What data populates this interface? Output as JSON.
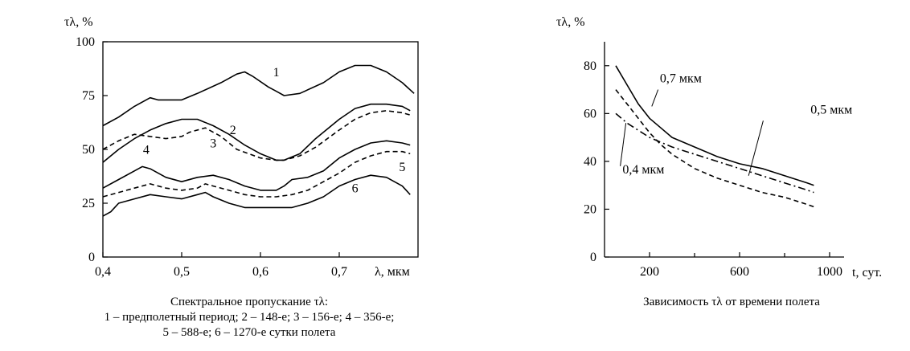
{
  "chart_data": [
    {
      "type": "line",
      "ylabel": "τλ, %",
      "xlabel": "λ, мкм",
      "xlim": [
        0.4,
        0.8
      ],
      "ylim": [
        0,
        100
      ],
      "x_ticks": [
        "0,4",
        "0,5",
        "0,6",
        "0,7"
      ],
      "x_tick_values": [
        0.4,
        0.5,
        0.6,
        0.7
      ],
      "y_ticks": [
        "0",
        "25",
        "50",
        "75",
        "100"
      ],
      "y_tick_values": [
        0,
        25,
        50,
        75,
        100
      ],
      "grid": false,
      "caption_lines": [
        "Спектральное пропускание τλ:",
        "1 – предполетный период; 2 – 148-е; 3 – 156-е; 4 – 356-е;",
        "5 – 588-е; 6 – 1270-е сутки полета"
      ],
      "series": [
        {
          "label": "1",
          "style": "solid",
          "x": [
            0.4,
            0.42,
            0.44,
            0.46,
            0.47,
            0.5,
            0.52,
            0.55,
            0.57,
            0.58,
            0.59,
            0.61,
            0.62,
            0.63,
            0.65,
            0.68,
            0.7,
            0.72,
            0.74,
            0.76,
            0.78,
            0.795
          ],
          "y": [
            61,
            65,
            70,
            74,
            73,
            73,
            76,
            81,
            85,
            86,
            84,
            79,
            77,
            75,
            76,
            81,
            86,
            89,
            89,
            86,
            81,
            76
          ]
        },
        {
          "label": "2",
          "style": "solid",
          "x": [
            0.4,
            0.42,
            0.44,
            0.46,
            0.48,
            0.5,
            0.52,
            0.54,
            0.56,
            0.58,
            0.6,
            0.62,
            0.63,
            0.65,
            0.67,
            0.7,
            0.72,
            0.74,
            0.76,
            0.78,
            0.79
          ],
          "y": [
            44,
            50,
            55,
            59,
            62,
            64,
            64,
            61,
            57,
            52,
            48,
            45,
            45,
            48,
            55,
            64,
            69,
            71,
            71,
            70,
            68
          ]
        },
        {
          "label": "3",
          "style": "dashed",
          "x": [
            0.4,
            0.42,
            0.44,
            0.46,
            0.48,
            0.5,
            0.51,
            0.53,
            0.55,
            0.57,
            0.6,
            0.62,
            0.63,
            0.65,
            0.67,
            0.7,
            0.72,
            0.74,
            0.76,
            0.78,
            0.79
          ],
          "y": [
            50,
            54,
            57,
            56,
            55,
            56,
            58,
            60,
            56,
            50,
            46,
            45,
            45,
            47,
            51,
            59,
            64,
            67,
            68,
            67,
            66
          ]
        },
        {
          "label": "4",
          "style": "solid",
          "x": [
            0.4,
            0.42,
            0.44,
            0.45,
            0.46,
            0.48,
            0.5,
            0.52,
            0.54,
            0.56,
            0.58,
            0.6,
            0.62,
            0.63,
            0.64,
            0.66,
            0.68,
            0.7,
            0.72,
            0.74,
            0.76,
            0.78,
            0.79
          ],
          "y": [
            32,
            36,
            40,
            42,
            41,
            37,
            35,
            37,
            38,
            36,
            33,
            31,
            31,
            33,
            36,
            37,
            40,
            46,
            50,
            53,
            54,
            53,
            52
          ]
        },
        {
          "label": "5",
          "style": "dashed",
          "x": [
            0.4,
            0.42,
            0.44,
            0.46,
            0.48,
            0.5,
            0.52,
            0.53,
            0.54,
            0.56,
            0.58,
            0.6,
            0.62,
            0.64,
            0.66,
            0.68,
            0.7,
            0.72,
            0.74,
            0.76,
            0.78,
            0.79
          ],
          "y": [
            28,
            30,
            32,
            34,
            32,
            31,
            32,
            34,
            33,
            31,
            29,
            28,
            28,
            29,
            31,
            35,
            39,
            44,
            47,
            49,
            49,
            48
          ]
        },
        {
          "label": "6",
          "style": "solid",
          "x": [
            0.4,
            0.41,
            0.42,
            0.44,
            0.46,
            0.48,
            0.5,
            0.52,
            0.53,
            0.54,
            0.56,
            0.58,
            0.6,
            0.62,
            0.64,
            0.66,
            0.68,
            0.7,
            0.72,
            0.74,
            0.76,
            0.78,
            0.79
          ],
          "y": [
            19,
            21,
            25,
            27,
            29,
            28,
            27,
            29,
            30,
            28,
            25,
            23,
            23,
            23,
            23,
            25,
            28,
            33,
            36,
            38,
            37,
            33,
            29
          ]
        }
      ]
    },
    {
      "type": "line",
      "ylabel": "τλ, %",
      "xlabel": "t, сут.",
      "xlim": [
        0,
        1100
      ],
      "ylim": [
        0,
        90
      ],
      "x_ticks": [
        "200",
        "600",
        "1000"
      ],
      "x_tick_values": [
        200,
        600,
        1000
      ],
      "x_minor_ticks": [
        400,
        800
      ],
      "y_ticks": [
        "0",
        "20",
        "40",
        "60",
        "80"
      ],
      "y_tick_values": [
        0,
        20,
        40,
        60,
        80
      ],
      "grid": false,
      "caption": "Зависимость τλ от времени полета",
      "series": [
        {
          "label": "0,7 мкм",
          "style": "solid",
          "x": [
            50,
            100,
            150,
            200,
            250,
            300,
            400,
            500,
            600,
            700,
            800,
            900,
            930
          ],
          "y": [
            80,
            72,
            64,
            58,
            54,
            50,
            46,
            42,
            39,
            37,
            34,
            31,
            30
          ]
        },
        {
          "label": "0,5 мкм",
          "style": "dashdot",
          "x": [
            50,
            100,
            150,
            200,
            250,
            300,
            400,
            500,
            600,
            700,
            800,
            900,
            930
          ],
          "y": [
            60,
            56,
            53,
            50,
            48,
            46,
            43,
            40,
            37,
            34,
            31,
            28,
            27
          ]
        },
        {
          "label": "0,4 мкм",
          "style": "dashed",
          "x": [
            50,
            100,
            150,
            200,
            250,
            300,
            400,
            500,
            600,
            700,
            800,
            900,
            930
          ],
          "y": [
            70,
            64,
            58,
            52,
            47,
            43,
            37,
            33,
            30,
            27,
            25,
            22,
            21
          ]
        }
      ]
    }
  ]
}
